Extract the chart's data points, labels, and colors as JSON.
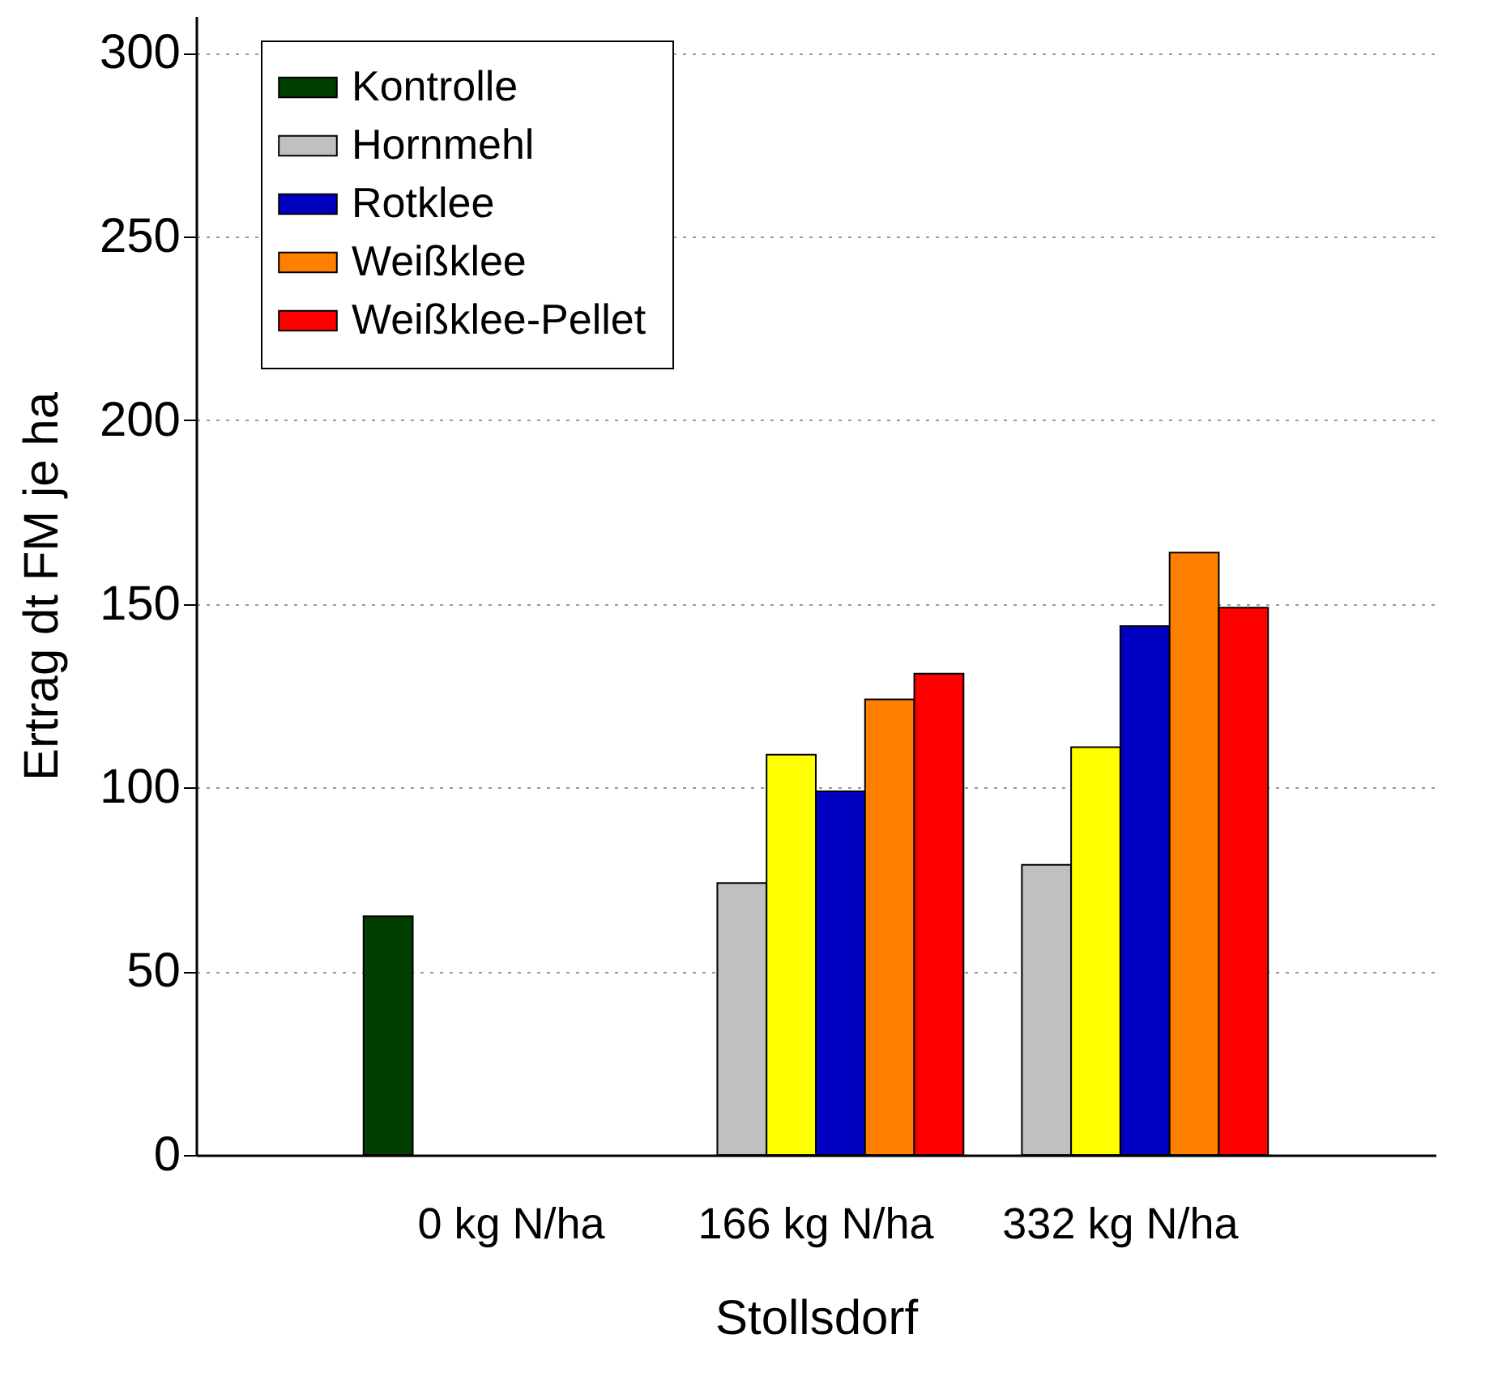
{
  "chart_data": {
    "type": "bar",
    "xlabel": "Stollsdorf",
    "ylabel": "Ertrag dt FM je ha",
    "categories": [
      "0 kg N/ha",
      "166 kg N/ha",
      "332 kg N/ha"
    ],
    "series": [
      {
        "name": "Kontrolle",
        "color": "#003f00",
        "values": [
          65,
          null,
          null
        ]
      },
      {
        "name": "Hornmehl",
        "color": "#c0c0c0",
        "values": [
          null,
          74,
          79
        ]
      },
      {
        "color": "#ffff00",
        "values": [
          null,
          109,
          111
        ]
      },
      {
        "name": "Rotklee",
        "color": "#0000c0",
        "values": [
          null,
          99,
          144
        ]
      },
      {
        "name": "Weißklee",
        "color": "#ff8000",
        "values": [
          null,
          124,
          164
        ]
      },
      {
        "name": "Weißklee-Pellet",
        "color": "#ff0000",
        "values": [
          null,
          131,
          149
        ]
      }
    ],
    "ylim": [
      0,
      310
    ],
    "yticks": [
      0,
      50,
      100,
      150,
      200,
      250,
      300
    ],
    "grid": "y",
    "legend": "top left"
  }
}
